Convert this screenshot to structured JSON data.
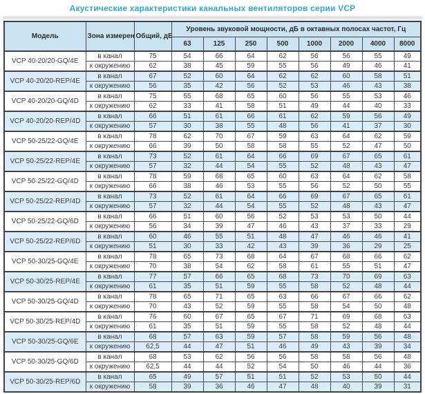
{
  "title": "Акустические характеристики канальных вентиляторов серии VCP",
  "table": {
    "headers": {
      "model": "Модель",
      "zone": "Зона измерения",
      "total": "Общий, дБА",
      "octave": "Уровень звуковой мощности, дБ в октавных полосах частот, Гц",
      "frequencies": [
        "63",
        "125",
        "250",
        "500",
        "1000",
        "2000",
        "4000",
        "8000"
      ]
    },
    "zone_labels": {
      "duct": "в канал",
      "ambient": "к окружению"
    },
    "rows": [
      {
        "model": "VCP 40-20/20-GQ/4E",
        "shaded": false,
        "duct": [
          "75",
          "54",
          "66",
          "64",
          "62",
          "56",
          "56",
          "55",
          "49"
        ],
        "ambient": [
          "62",
          "38",
          "45",
          "59",
          "55",
          "56",
          "49",
          "46",
          "41"
        ]
      },
      {
        "model": "VCP 40-20/20-REP/4E",
        "shaded": true,
        "duct": [
          "67",
          "52",
          "60",
          "64",
          "62",
          "62",
          "60",
          "58",
          "51"
        ],
        "ambient": [
          "56",
          "35",
          "42",
          "56",
          "52",
          "53",
          "46",
          "43",
          "38"
        ]
      },
      {
        "model": "VCP 40-20/20-GQ/4D",
        "shaded": false,
        "duct": [
          "75",
          "55",
          "68",
          "65",
          "60",
          "56",
          "55",
          "53",
          "46"
        ],
        "ambient": [
          "62",
          "33",
          "41",
          "58",
          "51",
          "49",
          "44",
          "40",
          "33"
        ]
      },
      {
        "model": "VCP 40-20/20-REP/4D",
        "shaded": true,
        "duct": [
          "66",
          "51",
          "61",
          "66",
          "61",
          "62",
          "59",
          "56",
          "49"
        ],
        "ambient": [
          "57",
          "30",
          "38",
          "55",
          "48",
          "56",
          "41",
          "37",
          "30"
        ]
      },
      {
        "model": "VCP 50-25/22-GQ/4E",
        "shaded": false,
        "duct": [
          "78",
          "62",
          "70",
          "67",
          "59",
          "63",
          "64",
          "62",
          "59"
        ],
        "ambient": [
          "66",
          "39",
          "50",
          "58",
          "58",
          "55",
          "52",
          "47",
          "50"
        ]
      },
      {
        "model": "VCP 50-25/22-REP/4E",
        "shaded": true,
        "duct": [
          "73",
          "52",
          "61",
          "64",
          "66",
          "69",
          "67",
          "65",
          "61"
        ],
        "ambient": [
          "57",
          "32",
          "44",
          "54",
          "55",
          "52",
          "48",
          "43",
          "47"
        ]
      },
      {
        "model": "VCP 50-25/22-GQ/4D",
        "shaded": false,
        "duct": [
          "78",
          "59",
          "68",
          "65",
          "60",
          "63",
          "64",
          "62",
          "58"
        ],
        "ambient": [
          "66",
          "38",
          "46",
          "53",
          "55",
          "56",
          "52",
          "50",
          "55"
        ]
      },
      {
        "model": "VCP 50-25/22-REP/4D",
        "shaded": true,
        "duct": [
          "73",
          "52",
          "61",
          "64",
          "66",
          "69",
          "67",
          "65",
          "61"
        ],
        "ambient": [
          "57",
          "32",
          "44",
          "54",
          "55",
          "52",
          "48",
          "43",
          "47"
        ]
      },
      {
        "model": "VCP 50-25/22-GQ/6D",
        "shaded": false,
        "duct": [
          "66",
          "51",
          "60",
          "56",
          "52",
          "53",
          "53",
          "50",
          "44"
        ],
        "ambient": [
          "56",
          "34",
          "39",
          "47",
          "46",
          "43",
          "37",
          "33",
          "29"
        ]
      },
      {
        "model": "VCP 50-25/22-REP/6D",
        "shaded": true,
        "duct": [
          "60",
          "46",
          "55",
          "51",
          "48",
          "47",
          "46",
          "46",
          "41"
        ],
        "ambient": [
          "51",
          "30",
          "33",
          "42",
          "43",
          "39",
          "36",
          "29",
          "25"
        ]
      },
      {
        "model": "VCP 50-30/25-GQ/4E",
        "shaded": false,
        "duct": [
          "78",
          "65",
          "73",
          "68",
          "64",
          "67",
          "68",
          "66",
          "62"
        ],
        "ambient": [
          "70",
          "38",
          "54",
          "62",
          "58",
          "61",
          "55",
          "51",
          "47"
        ]
      },
      {
        "model": "VCP 50-30/25-REP/4E",
        "shaded": true,
        "duct": [
          "77",
          "57",
          "66",
          "65",
          "68",
          "73",
          "70",
          "69",
          "63"
        ],
        "ambient": [
          "61",
          "35",
          "51",
          "59",
          "55",
          "58",
          "52",
          "48",
          "44"
        ]
      },
      {
        "model": "VCP 50-30/25-GQ/4D",
        "shaded": false,
        "duct": [
          "78",
          "65",
          "71",
          "65",
          "63",
          "66",
          "67",
          "66",
          "62"
        ],
        "ambient": [
          "70",
          "43",
          "52",
          "59",
          "55",
          "58",
          "54",
          "50",
          "48"
        ]
      },
      {
        "model": "VCP 50-30/25-REP/4D",
        "shaded": false,
        "duct": [
          "76",
          "60",
          "67",
          "65",
          "67",
          "71",
          "69",
          "68",
          "63"
        ],
        "ambient": [
          "61",
          "35",
          "51",
          "59",
          "55",
          "58",
          "52",
          "48",
          "44"
        ]
      },
      {
        "model": "VCP 50-30/25-GQ/6E",
        "shaded": true,
        "duct": [
          "68",
          "57",
          "63",
          "59",
          "57",
          "58",
          "59",
          "56",
          "48"
        ],
        "ambient": [
          "62,5",
          "44",
          "47",
          "51",
          "46",
          "49",
          "43",
          "39",
          "34"
        ]
      },
      {
        "model": "VCP 50-30/25-GQ/6D",
        "shaded": false,
        "duct": [
          "68",
          "53",
          "62",
          "56",
          "56",
          "58",
          "58",
          "56",
          "48"
        ],
        "ambient": [
          "62,5",
          "44",
          "44",
          "52",
          "54",
          "50",
          "46",
          "44",
          "36"
        ]
      },
      {
        "model": "VCP 50-30/25-REP/6D",
        "shaded": true,
        "duct": [
          "65",
          "49",
          "57",
          "51",
          "51",
          "52",
          "53",
          "50",
          "44"
        ],
        "ambient": [
          "58",
          "39",
          "36",
          "46",
          "47",
          "48",
          "40",
          "39",
          "31"
        ]
      }
    ]
  }
}
